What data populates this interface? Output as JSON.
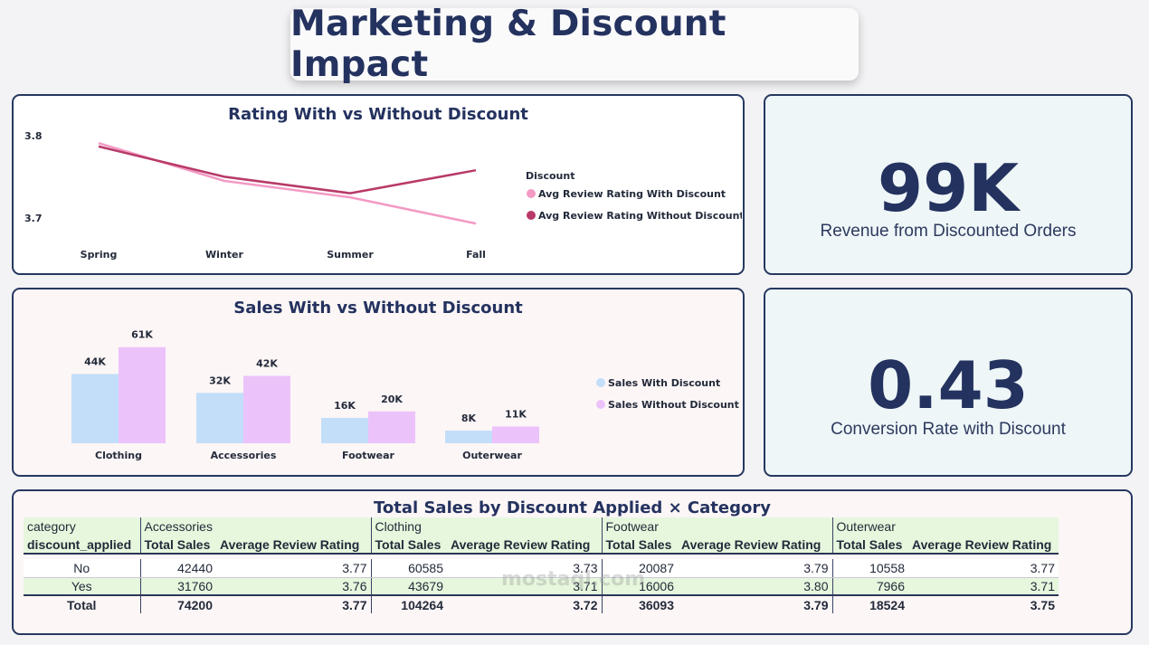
{
  "header": {
    "title": "Marketing & Discount Impact"
  },
  "kpis": {
    "revenue": {
      "value": "99K",
      "label": "Revenue from Discounted Orders"
    },
    "conversion": {
      "value": "0.43",
      "label": "Conversion Rate with Discount"
    }
  },
  "watermark": "mostaql.com",
  "colors": {
    "with_line": "#f39ac4",
    "without_line": "#b83a68",
    "with_bar": "#c3def9",
    "without_bar": "#ecc2fb",
    "navy": "#24325f"
  },
  "chart_data": [
    {
      "type": "line",
      "title": "Rating With vs Without Discount",
      "categories": [
        "Spring",
        "Winter",
        "Summer",
        "Fall"
      ],
      "ylim": [
        3.67,
        3.81
      ],
      "yticks": [
        "3.8",
        "3.7"
      ],
      "ytick_values": [
        3.8,
        3.7
      ],
      "legend_title": "Discount",
      "legend_position": "right",
      "series": [
        {
          "name": "Avg Review Rating With Discount",
          "values": [
            3.791,
            3.745,
            3.725,
            3.693
          ]
        },
        {
          "name": "Avg Review Rating Without Discount",
          "values": [
            3.787,
            3.75,
            3.73,
            3.758
          ]
        }
      ]
    },
    {
      "type": "bar",
      "title": "Sales With vs Without Discount",
      "categories": [
        "Clothing",
        "Accessories",
        "Footwear",
        "Outerwear"
      ],
      "ylim": [
        0,
        61000
      ],
      "legend_position": "right",
      "series": [
        {
          "name": "Sales With Discount",
          "values": [
            43679,
            31760,
            16006,
            7966
          ],
          "labels": [
            "44K",
            "32K",
            "16K",
            "8K"
          ]
        },
        {
          "name": "Sales Without Discount",
          "values": [
            60585,
            42440,
            20087,
            10558
          ],
          "labels": [
            "61K",
            "42K",
            "20K",
            "11K"
          ]
        }
      ]
    },
    {
      "type": "table",
      "title": "Total Sales by Discount Applied × Category",
      "row_header": "category",
      "row_subheader": "discount_applied",
      "categories": [
        "Accessories",
        "Clothing",
        "Footwear",
        "Outerwear"
      ],
      "measures": [
        "Total Sales",
        "Average Review Rating"
      ],
      "rows": [
        {
          "label": "No",
          "cells": [
            "42440",
            "3.77",
            "60585",
            "3.73",
            "20087",
            "3.79",
            "10558",
            "3.77"
          ]
        },
        {
          "label": "Yes",
          "cells": [
            "31760",
            "3.76",
            "43679",
            "3.71",
            "16006",
            "3.80",
            "7966",
            "3.71"
          ]
        },
        {
          "label": "Total",
          "cells": [
            "74200",
            "3.77",
            "104264",
            "3.72",
            "36093",
            "3.79",
            "18524",
            "3.75"
          ]
        }
      ]
    }
  ]
}
